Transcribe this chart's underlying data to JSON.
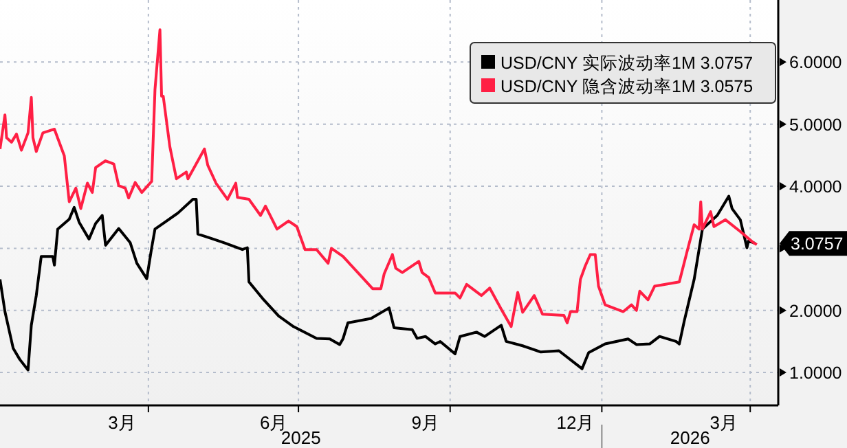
{
  "chart_data": {
    "type": "line",
    "xlim": [
      "2025-01-01",
      "2026-04-18"
    ],
    "ylim": [
      0.47,
      7.0
    ],
    "xticks": [
      {
        "value": "2025-03-16",
        "label": "3月"
      },
      {
        "value": "2025-04-01",
        "label": null
      },
      {
        "value": "2025-06-16",
        "label": "6月"
      },
      {
        "value": "2025-07-01",
        "label": null
      },
      {
        "value": "2025-09-16",
        "label": "9月"
      },
      {
        "value": "2025-10-01",
        "label": null
      },
      {
        "value": "2025-12-16",
        "label": "12月"
      },
      {
        "value": "2026-01-01",
        "label": null
      },
      {
        "value": "2026-03-16",
        "label": "3月"
      },
      {
        "value": "2026-04-01",
        "label": null
      }
    ],
    "yticks": [
      {
        "value": 1,
        "label": "1.0000"
      },
      {
        "value": 2,
        "label": "2.0000"
      },
      {
        "value": 3,
        "label": null
      },
      {
        "value": 4,
        "label": "4.0000"
      },
      {
        "value": 5,
        "label": "5.0000"
      },
      {
        "value": 6,
        "label": "6.0000"
      }
    ],
    "grid": true,
    "legend": "top right",
    "line_style": "solid",
    "annotations": [
      "2025",
      "2026",
      "3.0757"
    ],
    "series": [
      {
        "name": "USD/CNY 实际波动率1M 3.0757",
        "color": "#000000",
        "x": [
          "2025-01-01",
          "2025-01-04",
          "2025-01-09",
          "2025-01-13",
          "2025-01-18",
          "2025-01-20",
          "2025-01-23",
          "2025-01-26",
          "2025-02-02",
          "2025-02-03",
          "2025-02-05",
          "2025-02-12",
          "2025-02-15",
          "2025-02-18",
          "2025-02-24",
          "2025-02-28",
          "2025-03-04",
          "2025-03-06",
          "2025-03-14",
          "2025-03-21",
          "2025-03-25",
          "2025-03-31",
          "2025-04-03",
          "2025-04-05",
          "2025-04-11",
          "2025-04-19",
          "2025-04-28",
          "2025-04-30",
          "2025-05-01",
          "2025-05-09",
          "2025-05-17",
          "2025-05-28",
          "2025-05-31",
          "2025-06-01",
          "2025-06-10",
          "2025-06-19",
          "2025-06-28",
          "2025-07-12",
          "2025-07-20",
          "2025-07-26",
          "2025-07-28",
          "2025-07-31",
          "2025-08-14",
          "2025-08-25",
          "2025-08-28",
          "2025-09-08",
          "2025-09-11",
          "2025-09-16",
          "2025-09-22",
          "2025-09-25",
          "2025-10-04",
          "2025-10-07",
          "2025-10-17",
          "2025-10-22",
          "2025-11-01",
          "2025-11-04",
          "2025-11-14",
          "2025-11-25",
          "2025-12-06",
          "2025-12-20",
          "2025-12-24",
          "2026-01-03",
          "2026-01-17",
          "2026-01-22",
          "2026-01-30",
          "2026-02-05",
          "2026-02-15",
          "2026-02-17",
          "2026-02-20",
          "2026-02-26",
          "2026-03-03",
          "2026-03-12",
          "2026-03-19",
          "2026-03-21",
          "2026-03-26",
          "2026-03-30",
          "2026-03-31",
          "2026-04-04"
        ],
        "values": [
          2.5,
          1.98,
          1.39,
          1.21,
          1.04,
          1.76,
          2.24,
          2.87,
          2.87,
          2.73,
          3.31,
          3.47,
          3.66,
          3.42,
          3.15,
          3.4,
          3.53,
          3.05,
          3.32,
          3.09,
          2.76,
          2.51,
          3.01,
          3.31,
          3.42,
          3.57,
          3.79,
          3.79,
          3.23,
          3.16,
          3.09,
          2.98,
          3.01,
          2.46,
          2.17,
          1.91,
          1.74,
          1.55,
          1.54,
          1.45,
          1.54,
          1.8,
          1.87,
          2.04,
          1.72,
          1.69,
          1.55,
          1.58,
          1.46,
          1.5,
          1.3,
          1.58,
          1.65,
          1.58,
          1.76,
          1.5,
          1.43,
          1.33,
          1.35,
          1.06,
          1.32,
          1.46,
          1.54,
          1.45,
          1.46,
          1.58,
          1.5,
          1.46,
          1.83,
          2.5,
          3.31,
          3.53,
          3.84,
          3.64,
          3.46,
          3.01,
          3.12,
          3.08
        ]
      },
      {
        "name": "USD/CNY 隐含波动率1M 3.0575",
        "color": "#ff1f44",
        "x": [
          "2025-01-01",
          "2025-01-04",
          "2025-01-05",
          "2025-01-08",
          "2025-01-11",
          "2025-01-14",
          "2025-01-18",
          "2025-01-20",
          "2025-01-21",
          "2025-01-23",
          "2025-01-27",
          "2025-02-03",
          "2025-02-09",
          "2025-02-12",
          "2025-02-16",
          "2025-02-19",
          "2025-02-23",
          "2025-02-26",
          "2025-02-28",
          "2025-03-06",
          "2025-03-11",
          "2025-03-14",
          "2025-03-18",
          "2025-03-20",
          "2025-03-24",
          "2025-03-28",
          "2025-04-03",
          "2025-04-05",
          "2025-04-08",
          "2025-04-09",
          "2025-04-10",
          "2025-04-14",
          "2025-04-18",
          "2025-04-24",
          "2025-04-25",
          "2025-05-05",
          "2025-05-07",
          "2025-05-12",
          "2025-05-19",
          "2025-05-24",
          "2025-05-25",
          "2025-06-01",
          "2025-06-08",
          "2025-06-11",
          "2025-06-18",
          "2025-06-25",
          "2025-06-30",
          "2025-07-05",
          "2025-07-12",
          "2025-07-19",
          "2025-07-21",
          "2025-07-28",
          "2025-08-06",
          "2025-08-15",
          "2025-08-20",
          "2025-08-22",
          "2025-08-27",
          "2025-08-29",
          "2025-09-02",
          "2025-09-12",
          "2025-09-14",
          "2025-09-18",
          "2025-09-22",
          "2025-10-04",
          "2025-10-07",
          "2025-10-11",
          "2025-10-20",
          "2025-10-25",
          "2025-11-01",
          "2025-11-07",
          "2025-11-11",
          "2025-11-14",
          "2025-11-21",
          "2025-11-26",
          "2025-12-09",
          "2025-12-11",
          "2025-12-13",
          "2025-12-17",
          "2025-12-19",
          "2025-12-22",
          "2025-12-25",
          "2025-12-28",
          "2025-12-30",
          "2026-01-03",
          "2026-01-14",
          "2026-01-19",
          "2026-01-22",
          "2026-01-24",
          "2026-01-29",
          "2026-02-02",
          "2026-02-17",
          "2026-02-22",
          "2026-02-26",
          "2026-03-01",
          "2026-03-02",
          "2026-03-03",
          "2026-03-08",
          "2026-03-10",
          "2026-03-17",
          "2026-03-26",
          "2026-04-03",
          "2026-04-05"
        ],
        "values": [
          4.6,
          5.15,
          4.78,
          4.71,
          4.84,
          4.58,
          4.86,
          5.43,
          4.78,
          4.56,
          4.86,
          4.92,
          4.49,
          3.75,
          3.97,
          3.64,
          4.05,
          3.9,
          4.3,
          4.41,
          4.36,
          4.01,
          3.97,
          3.81,
          4.06,
          3.9,
          4.08,
          5.56,
          6.52,
          5.45,
          5.45,
          4.64,
          4.12,
          4.23,
          4.12,
          4.6,
          4.34,
          4.05,
          3.79,
          4.05,
          3.82,
          3.79,
          3.53,
          3.68,
          3.31,
          3.44,
          3.35,
          2.98,
          2.98,
          2.76,
          3.0,
          2.87,
          2.61,
          2.35,
          2.35,
          2.59,
          2.9,
          2.68,
          2.61,
          2.79,
          2.61,
          2.53,
          2.28,
          2.28,
          2.2,
          2.42,
          2.24,
          2.36,
          2.02,
          1.74,
          2.29,
          1.97,
          2.24,
          1.94,
          1.92,
          1.8,
          1.98,
          1.98,
          2.5,
          2.72,
          2.9,
          2.9,
          2.39,
          2.09,
          1.98,
          2.09,
          2.0,
          2.31,
          2.17,
          2.39,
          2.46,
          2.98,
          3.38,
          3.31,
          3.75,
          3.31,
          3.59,
          3.35,
          3.46,
          3.27,
          3.09,
          3.06
        ]
      }
    ]
  }
}
